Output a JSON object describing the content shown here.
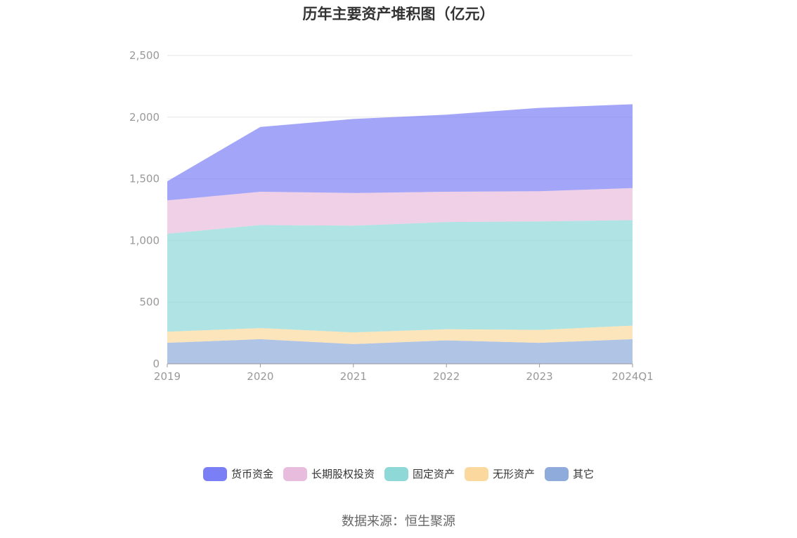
{
  "chart_data": {
    "type": "area",
    "stacked": true,
    "title": "历年主要资产堆积图（亿元）",
    "categories": [
      "2019",
      "2020",
      "2021",
      "2022",
      "2023",
      "2024Q1"
    ],
    "ylim": [
      0,
      2500
    ],
    "yticks": [
      "0",
      "500",
      "1,000",
      "1,500",
      "2,000",
      "2,500"
    ],
    "grid": true,
    "legend_position": "bottom",
    "series": [
      {
        "name": "其它",
        "color": "#8eabdc",
        "values": [
          170,
          200,
          160,
          190,
          170,
          200
        ]
      },
      {
        "name": "无形资产",
        "color": "#fbd89e",
        "values": [
          90,
          90,
          95,
          90,
          105,
          110
        ]
      },
      {
        "name": "固定资产",
        "color": "#8ed8d8",
        "values": [
          795,
          835,
          865,
          870,
          880,
          855
        ]
      },
      {
        "name": "长期股权投资",
        "color": "#e8bcdc",
        "values": [
          270,
          270,
          265,
          245,
          245,
          260
        ]
      },
      {
        "name": "货币资金",
        "color": "#7b7ff5",
        "values": [
          155,
          525,
          600,
          625,
          675,
          680
        ]
      }
    ],
    "legend_order": [
      "货币资金",
      "长期股权投资",
      "固定资产",
      "无形资产",
      "其它"
    ]
  },
  "source": "数据来源：恒生聚源"
}
